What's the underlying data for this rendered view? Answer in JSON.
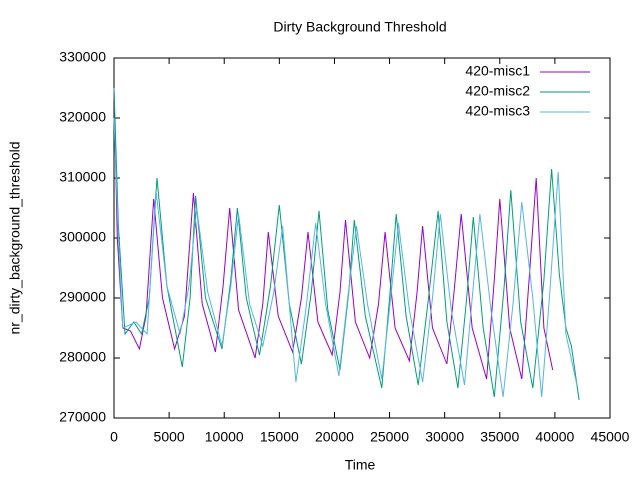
{
  "chart_data": {
    "type": "line",
    "title": "Dirty Background Threshold",
    "x_label": "Time",
    "y_label": "nr_dirty_background_threshold",
    "xlim": [
      0,
      45000
    ],
    "ylim": [
      270000,
      330000
    ],
    "xticks": [
      0,
      5000,
      10000,
      15000,
      20000,
      25000,
      30000,
      35000,
      40000,
      45000
    ],
    "yticks": [
      270000,
      280000,
      290000,
      300000,
      310000,
      320000,
      330000
    ],
    "legend": "top-right",
    "series": [
      {
        "name": "420-misc1",
        "color": "#9400d3",
        "x": [
          0,
          300,
          800,
          1500,
          2300,
          2900,
          3600,
          4400,
          5500,
          6400,
          7200,
          8000,
          9200,
          9900,
          10500,
          11300,
          12800,
          13500,
          14000,
          14900,
          16200,
          17000,
          17600,
          18500,
          19800,
          20500,
          21000,
          21900,
          23200,
          24000,
          24600,
          25500,
          26800,
          27500,
          28000,
          28900,
          30200,
          30900,
          31500,
          32500,
          33800,
          34500,
          35000,
          35900,
          37000,
          37700,
          38300,
          39000,
          39800
        ],
        "values": [
          325000,
          300000,
          285000,
          284500,
          281500,
          287000,
          306500,
          290000,
          281500,
          287000,
          307500,
          289000,
          281000,
          292000,
          305000,
          288000,
          280000,
          289000,
          301000,
          287000,
          281000,
          290000,
          301000,
          286000,
          280500,
          291000,
          303000,
          286000,
          280000,
          289000,
          301000,
          285000,
          279500,
          291000,
          302000,
          285000,
          279000,
          292000,
          304000,
          285000,
          276500,
          293000,
          306500,
          285000,
          276500,
          294000,
          310000,
          285000,
          278000
        ]
      },
      {
        "name": "420-misc2",
        "color": "#009e73",
        "x": [
          0,
          400,
          1000,
          1800,
          2500,
          3200,
          3900,
          4800,
          6200,
          6900,
          7400,
          8300,
          9800,
          10600,
          11200,
          12000,
          13200,
          14200,
          15000,
          15900,
          17000,
          17900,
          18600,
          19400,
          20500,
          21300,
          21800,
          22800,
          24300,
          25000,
          25600,
          26500,
          27600,
          28600,
          29400,
          30200,
          31200,
          32000,
          32600,
          33500,
          34500,
          35400,
          36000,
          36900,
          38000,
          39000,
          39700,
          40400,
          41000,
          41500,
          42200
        ],
        "values": [
          325000,
          302000,
          284000,
          286000,
          284000,
          290000,
          310000,
          292000,
          278500,
          290000,
          307000,
          290000,
          281500,
          293000,
          305000,
          290000,
          280500,
          292000,
          305500,
          289000,
          279000,
          291000,
          304500,
          288000,
          278000,
          291000,
          303000,
          287000,
          275000,
          290000,
          304000,
          287000,
          275500,
          291000,
          304500,
          286000,
          275000,
          290000,
          303500,
          285000,
          273500,
          292000,
          308000,
          286000,
          275000,
          293000,
          311500,
          294000,
          285000,
          282000,
          273000
        ]
      },
      {
        "name": "420-misc3",
        "color": "#56b4e9",
        "x": [
          0,
          400,
          800,
          2000,
          3000,
          3800,
          4800,
          6000,
          6800,
          7500,
          8500,
          9800,
          10600,
          11300,
          12300,
          13500,
          14500,
          15300,
          16500,
          17400,
          18300,
          19200,
          20400,
          21200,
          22000,
          23000,
          24300,
          25100,
          25800,
          26800,
          28000,
          28900,
          29600,
          30600,
          31800,
          32500,
          33200,
          34200,
          35300,
          36200,
          37000,
          38000,
          38800,
          39500,
          40300,
          41000,
          42000
        ],
        "values": [
          320000,
          300000,
          285000,
          286000,
          284000,
          308000,
          292000,
          284000,
          292000,
          305000,
          291000,
          282000,
          292000,
          304000,
          289000,
          282000,
          291000,
          302000,
          276000,
          288000,
          302500,
          289000,
          277000,
          290000,
          302000,
          289000,
          276500,
          290000,
          302500,
          288000,
          276000,
          290000,
          304000,
          288000,
          275500,
          290000,
          304000,
          288000,
          273500,
          289000,
          306000,
          290000,
          273500,
          290000,
          311000,
          284000,
          275500
        ]
      }
    ]
  }
}
